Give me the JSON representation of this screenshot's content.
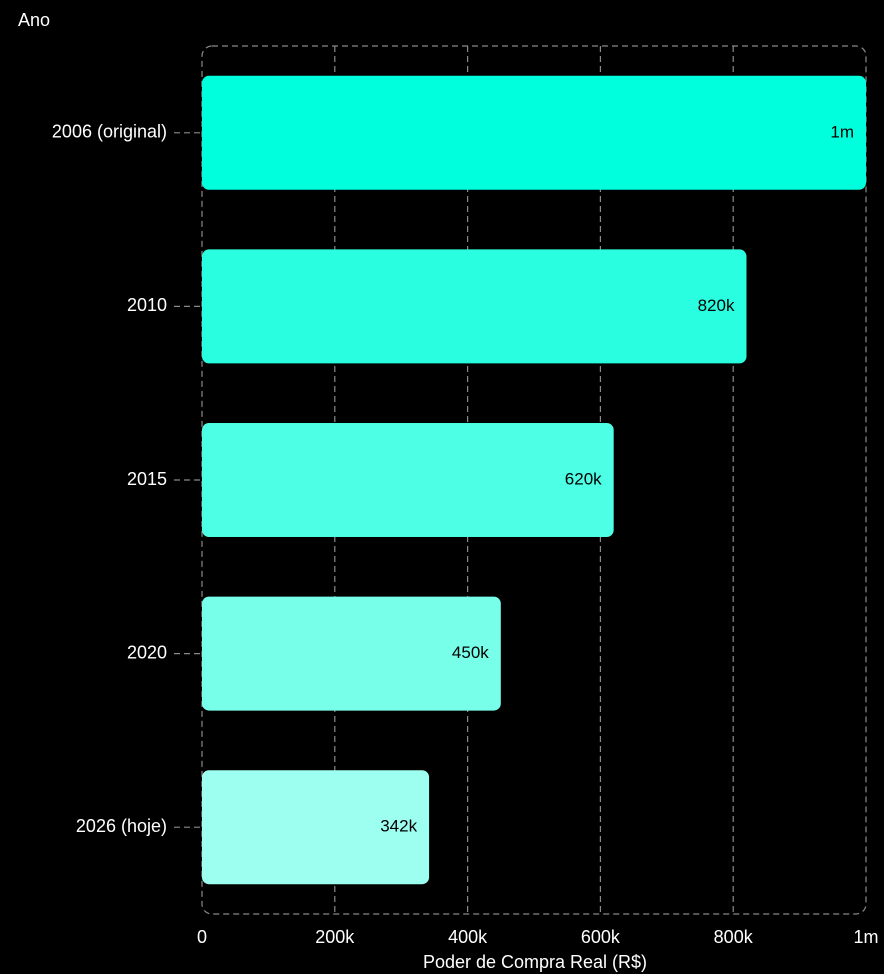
{
  "chart_data": {
    "type": "bar",
    "orientation": "horizontal",
    "title": "",
    "ylabel": "Ano",
    "xlabel": "Poder de Compra Real (R$)",
    "categories": [
      "2006 (original)",
      "2010",
      "2015",
      "2020",
      "2026 (hoje)"
    ],
    "values": [
      1000000,
      820000,
      620000,
      450000,
      342000
    ],
    "value_labels": [
      "1m",
      "820k",
      "620k",
      "450k",
      "342k"
    ],
    "xlim": [
      0,
      1000000
    ],
    "x_ticks": [
      0,
      200000,
      400000,
      600000,
      800000,
      1000000
    ],
    "x_tick_labels": [
      "0",
      "200k",
      "400k",
      "600k",
      "800k",
      "1m"
    ],
    "grid": true,
    "colors": [
      "#00FFDD",
      "#29FFE0",
      "#4DFFE5",
      "#77FFEA",
      "#9DFFF0"
    ],
    "background": "#000000"
  }
}
